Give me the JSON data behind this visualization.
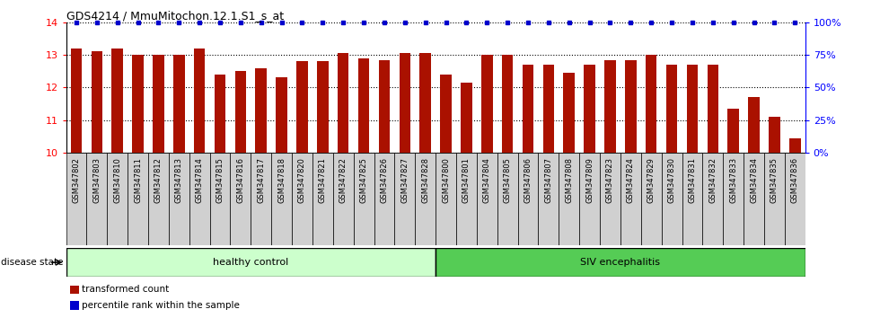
{
  "title": "GDS4214 / MmuMitochon.12.1.S1_s_at",
  "samples": [
    "GSM347802",
    "GSM347803",
    "GSM347810",
    "GSM347811",
    "GSM347812",
    "GSM347813",
    "GSM347814",
    "GSM347815",
    "GSM347816",
    "GSM347817",
    "GSM347818",
    "GSM347820",
    "GSM347821",
    "GSM347822",
    "GSM347825",
    "GSM347826",
    "GSM347827",
    "GSM347828",
    "GSM347800",
    "GSM347801",
    "GSM347804",
    "GSM347805",
    "GSM347806",
    "GSM347807",
    "GSM347808",
    "GSM347809",
    "GSM347823",
    "GSM347824",
    "GSM347829",
    "GSM347830",
    "GSM347831",
    "GSM347832",
    "GSM347833",
    "GSM347834",
    "GSM347835",
    "GSM347836"
  ],
  "values": [
    13.2,
    13.1,
    13.2,
    13.0,
    13.0,
    13.0,
    13.2,
    12.4,
    12.5,
    12.6,
    12.3,
    12.8,
    12.8,
    13.05,
    12.9,
    12.85,
    13.05,
    13.05,
    12.4,
    12.15,
    13.0,
    13.0,
    12.7,
    12.7,
    12.45,
    12.7,
    12.85,
    12.85,
    13.0,
    12.7,
    12.7,
    12.7,
    11.35,
    11.7,
    11.1,
    10.45
  ],
  "percentile_values": [
    100,
    100,
    100,
    100,
    100,
    100,
    100,
    100,
    100,
    100,
    100,
    100,
    100,
    100,
    100,
    100,
    100,
    100,
    100,
    100,
    100,
    100,
    100,
    100,
    100,
    100,
    100,
    100,
    100,
    100,
    100,
    100,
    100,
    100,
    100,
    100
  ],
  "healthy_count": 18,
  "siv_count": 18,
  "bar_color": "#aa1100",
  "percentile_color": "#0000cc",
  "ylim": [
    10,
    14
  ],
  "yticks": [
    10,
    11,
    12,
    13,
    14
  ],
  "right_yticks": [
    0,
    25,
    50,
    75,
    100
  ],
  "healthy_label": "healthy control",
  "siv_label": "SIV encephalitis",
  "disease_state_label": "disease state",
  "legend_bar_label": "transformed count",
  "legend_percentile_label": "percentile rank within the sample",
  "healthy_color": "#ccffcc",
  "siv_color": "#55cc55",
  "xtick_bg": "#d0d0d0"
}
